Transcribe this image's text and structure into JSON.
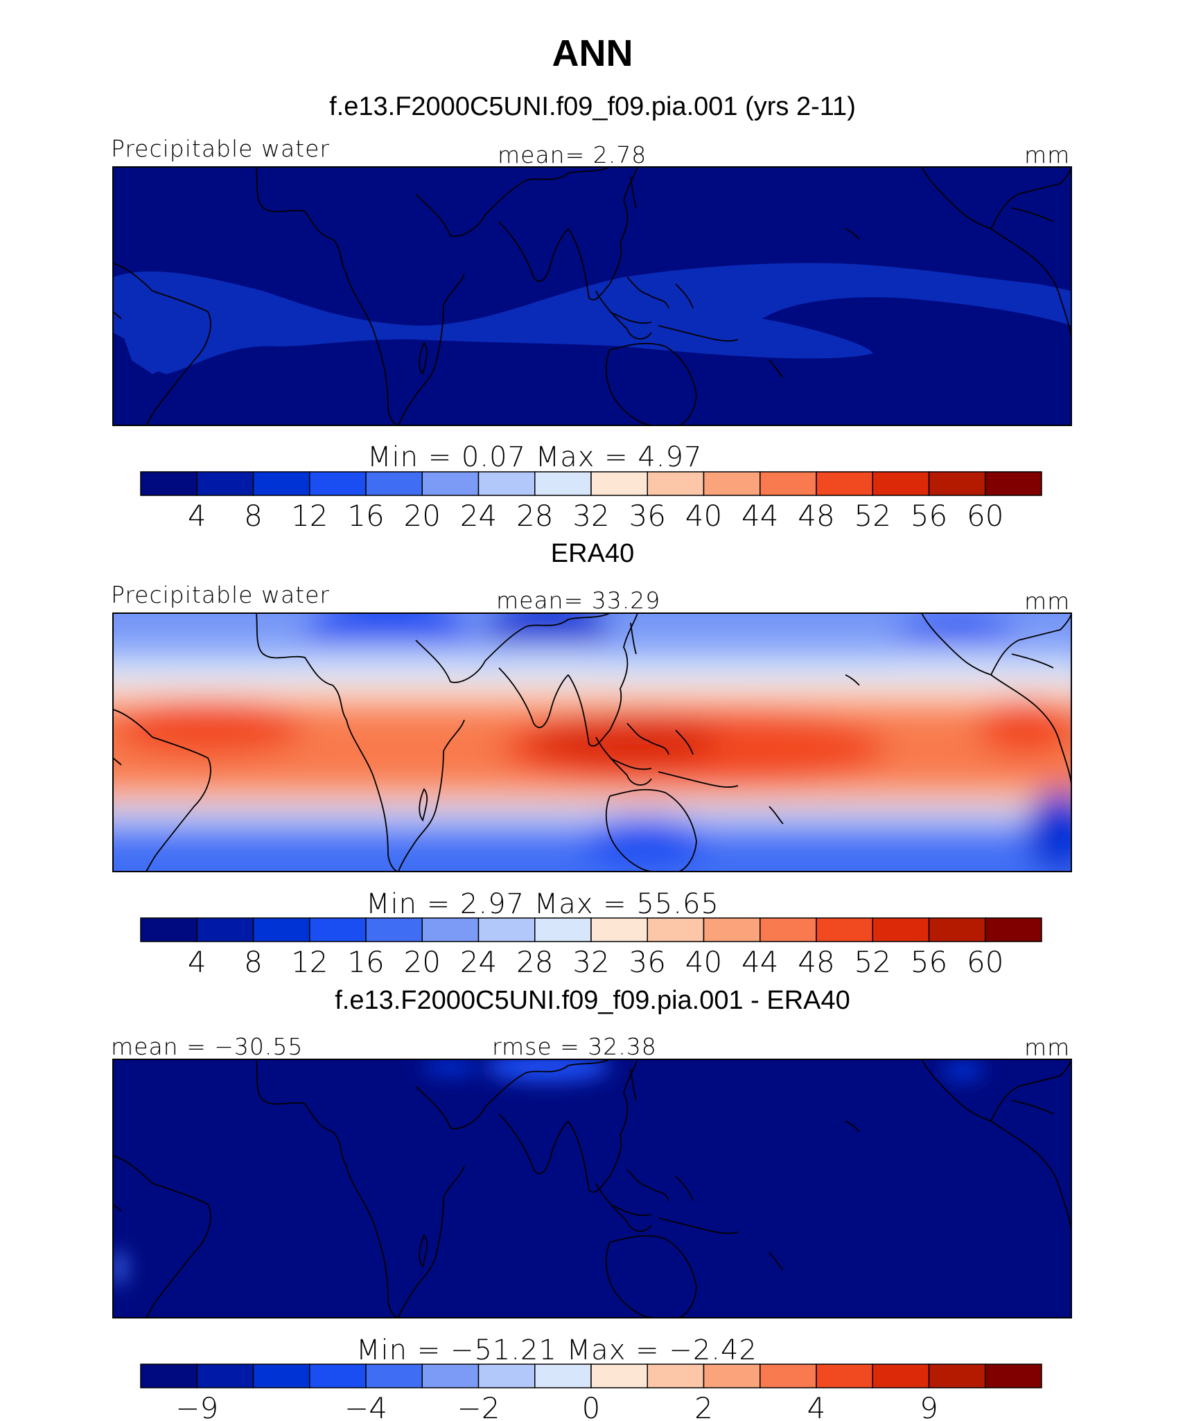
{
  "page": {
    "title": "ANN"
  },
  "chart_data": [
    {
      "type": "heatmap",
      "title": "f.e13.F2000C5UNI.f09_f09.pia.001 (yrs 2-11)",
      "left_label": "Precipitable water",
      "center_label": "mean=   2.78",
      "units": "mm",
      "min_max": "Min  =     0.07  Max  =     4.97",
      "colorbar_ticks": [
        "4",
        "8",
        "12",
        "16",
        "20",
        "24",
        "28",
        "32",
        "36",
        "40",
        "44",
        "48",
        "52",
        "56",
        "60"
      ],
      "mean": 2.78,
      "min": 0.07,
      "max": 4.97
    },
    {
      "type": "heatmap",
      "title": "ERA40",
      "left_label": "Precipitable water",
      "center_label": "mean=   33.29",
      "units": "mm",
      "min_max": "Min  =     2.97  Max  =    55.65",
      "colorbar_ticks": [
        "4",
        "8",
        "12",
        "16",
        "20",
        "24",
        "28",
        "32",
        "36",
        "40",
        "44",
        "48",
        "52",
        "56",
        "60"
      ],
      "mean": 33.29,
      "min": 2.97,
      "max": 55.65
    },
    {
      "type": "heatmap",
      "title": "f.e13.F2000C5UNI.f09_f09.pia.001 - ERA40",
      "left_label": "mean = −30.55",
      "center_label": "rmse  =   32.38",
      "units": "mm",
      "min_max": "Min  = −51.21  Max  =   −2.42",
      "colorbar_ticks": [
        "−9",
        "−4",
        "−2",
        "0",
        "2",
        "4",
        "9"
      ],
      "mean": -30.55,
      "rmse": 32.38,
      "min": -51.21,
      "max": -2.42
    }
  ],
  "colorbar_colors": [
    "#000a80",
    "#001aa8",
    "#0033d6",
    "#1a4df2",
    "#3f6ef5",
    "#7c9bf7",
    "#b3c8fa",
    "#d8e6fc",
    "#fde6d4",
    "#fcc6a8",
    "#fba47c",
    "#f87a4e",
    "#f24a20",
    "#dc2a08",
    "#b41a00",
    "#800000"
  ],
  "colors": {
    "ocean_dry": "#000a80",
    "coast": "#000000"
  }
}
